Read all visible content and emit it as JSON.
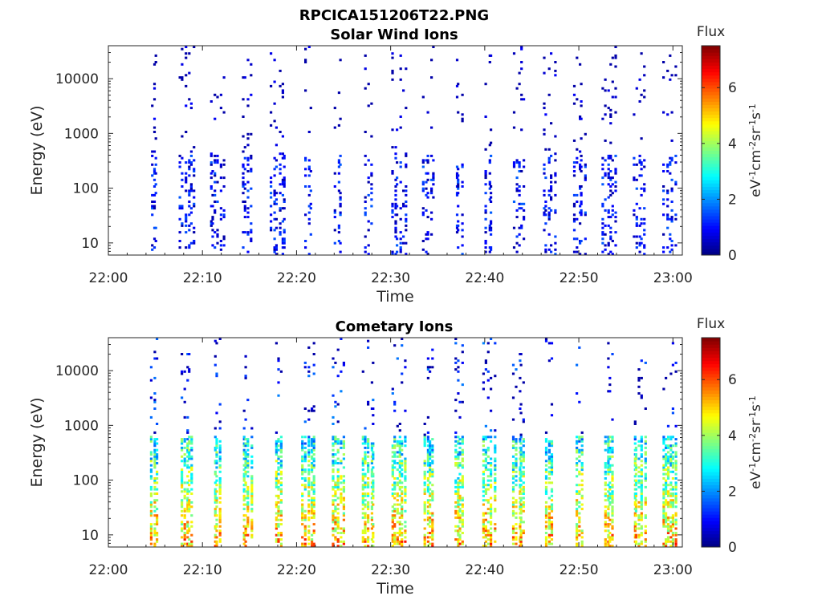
{
  "figure_title": "RPCICA151206T22.PNG",
  "chart_data": [
    {
      "type": "heatmap",
      "title": "Solar Wind Ions",
      "xlabel": "Time",
      "ylabel": "Energy (eV)",
      "x_ticks": [
        "22:00",
        "22:10",
        "22:20",
        "22:30",
        "22:40",
        "22:50",
        "23:00"
      ],
      "y_ticks": [
        "10",
        "100",
        "1000",
        "10000"
      ],
      "y_scale": "log",
      "xlim_minutes": [
        0,
        61
      ],
      "ylim_eV": [
        6,
        40000
      ],
      "colorbar": {
        "title": "Flux",
        "label": "eV-1cm-2sr-1s-1",
        "range": [
          0,
          7.5
        ],
        "ticks": [
          "0",
          "2",
          "4",
          "6"
        ],
        "colormap": "jet"
      },
      "scan_times_minutes": [
        5,
        8.5,
        11.7,
        14.9,
        18.2,
        21.4,
        24.6,
        27.8,
        31,
        34.2,
        37.4,
        40.6,
        43.8,
        47,
        50.2,
        53.4,
        56.6,
        59.8
      ],
      "intensity_scale": 0.55,
      "seed": 7
    },
    {
      "type": "heatmap",
      "title": "Cometary Ions",
      "xlabel": "Time",
      "ylabel": "Energy (eV)",
      "x_ticks": [
        "22:00",
        "22:10",
        "22:20",
        "22:30",
        "22:40",
        "22:50",
        "23:00"
      ],
      "y_ticks": [
        "10",
        "100",
        "1000",
        "10000"
      ],
      "y_scale": "log",
      "xlim_minutes": [
        0,
        61
      ],
      "ylim_eV": [
        6,
        40000
      ],
      "colorbar": {
        "title": "Flux",
        "label": "eV-1cm-2sr-1s-1",
        "range": [
          0,
          7.5
        ],
        "ticks": [
          "0",
          "2",
          "4",
          "6"
        ],
        "colormap": "jet"
      },
      "scan_times_minutes": [
        5,
        8.5,
        11.7,
        14.9,
        18.2,
        21.4,
        24.6,
        27.8,
        31,
        34.2,
        37.4,
        40.6,
        43.8,
        47,
        50.2,
        53.4,
        56.6,
        59.8
      ],
      "intensity_scale": 1,
      "seed": 23
    }
  ]
}
